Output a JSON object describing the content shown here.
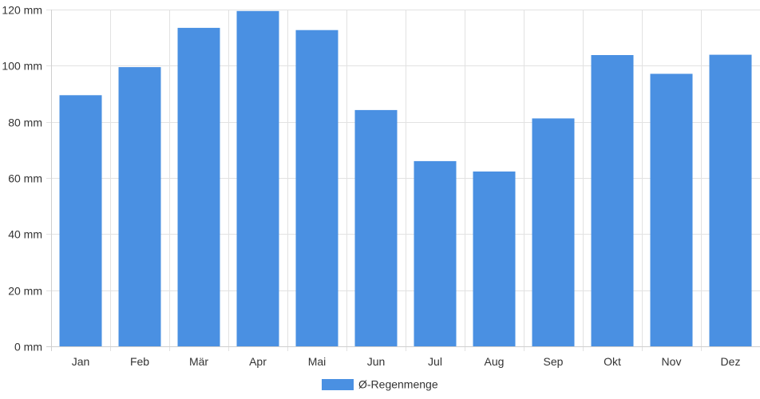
{
  "chart_data": {
    "type": "bar",
    "categories": [
      "Jan",
      "Feb",
      "Mär",
      "Apr",
      "Mai",
      "Jun",
      "Jul",
      "Aug",
      "Sep",
      "Okt",
      "Nov",
      "Dez"
    ],
    "series": [
      {
        "name": "Ø-Regenmenge",
        "values": [
          89.5,
          99.5,
          113.5,
          119.5,
          112.7,
          84.2,
          66.0,
          62.3,
          81.2,
          103.8,
          97.1,
          103.9
        ],
        "color": "#4a90e2"
      }
    ],
    "y_ticks": [
      "0 mm",
      "20 mm",
      "40 mm",
      "60 mm",
      "80 mm",
      "100 mm",
      "120 mm"
    ],
    "ylim": [
      0,
      120
    ],
    "y_step": 20,
    "grid": true,
    "legend_position": "bottom-center"
  }
}
